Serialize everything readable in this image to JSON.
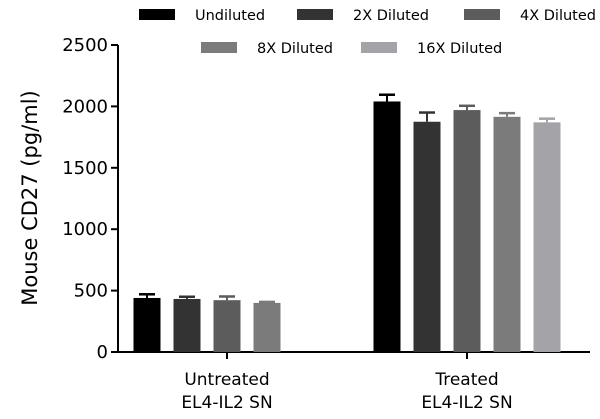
{
  "chart_data": {
    "type": "bar",
    "title": "",
    "xlabel": "",
    "ylabel": "Mouse CD27 (pg/ml)",
    "ylim": [
      0,
      2500
    ],
    "yticks": [
      0,
      500,
      1000,
      1500,
      2000,
      2500
    ],
    "categories": [
      [
        "Untreated",
        "EL4-IL2 SN"
      ],
      [
        "Treated",
        "EL4-IL2 SN"
      ]
    ],
    "series": [
      {
        "name": "Undiluted",
        "color": "#000000",
        "values": [
          440,
          2040
        ],
        "errors": [
          30,
          55
        ]
      },
      {
        "name": "2X Diluted",
        "color": "#333333",
        "values": [
          432,
          1875
        ],
        "errors": [
          18,
          75
        ]
      },
      {
        "name": "4X Diluted",
        "color": "#5c5c5c",
        "values": [
          422,
          1970
        ],
        "errors": [
          30,
          35
        ]
      },
      {
        "name": "8X Diluted",
        "color": "#7b7b7b",
        "values": [
          400,
          1915
        ],
        "errors": [
          8,
          30
        ]
      },
      {
        "name": "16X Diluted",
        "color": "#a3a3a8",
        "values": [
          null,
          1870
        ],
        "errors": [
          null,
          30
        ]
      }
    ],
    "legend_position": "top",
    "grid": false
  }
}
